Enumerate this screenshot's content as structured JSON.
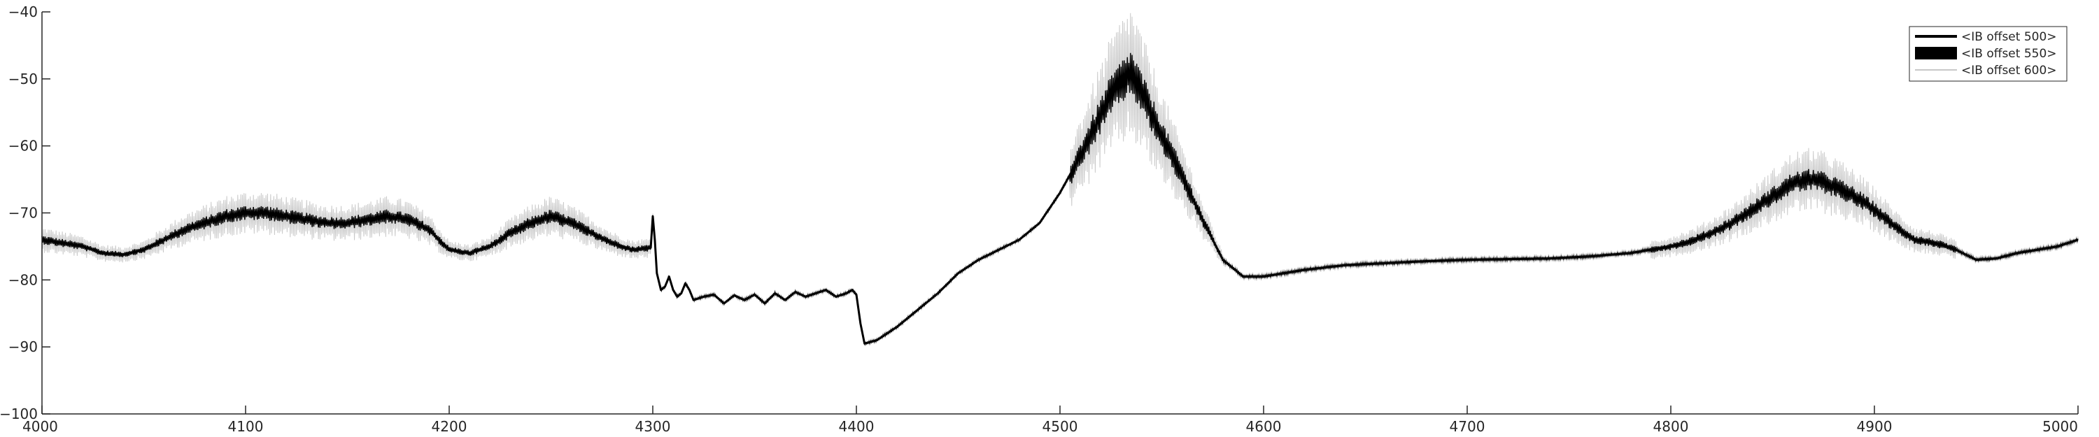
{
  "chart_data": {
    "type": "line",
    "title": "",
    "xlabel": "",
    "ylabel": "",
    "xlim": [
      4000,
      5000
    ],
    "ylim": [
      -100,
      -40
    ],
    "xticks": [
      4000,
      4100,
      4200,
      4300,
      4400,
      4500,
      4600,
      4700,
      4800,
      4900,
      5000
    ],
    "yticks": [
      -100,
      -90,
      -80,
      -70,
      -60,
      -50,
      -40
    ],
    "grid": false,
    "legend_position": "top-right",
    "series": [
      {
        "name": "<IB offset 500>",
        "color": "#000000",
        "style": "thick",
        "x": [
          4000,
          4010,
          4020,
          4030,
          4040,
          4050,
          4060,
          4070,
          4080,
          4090,
          4100,
          4110,
          4120,
          4130,
          4140,
          4150,
          4160,
          4170,
          4180,
          4190,
          4200,
          4210,
          4220,
          4230,
          4240,
          4250,
          4260,
          4270,
          4280,
          4290,
          4299,
          4300,
          4301,
          4302,
          4304,
          4306,
          4308,
          4310,
          4312,
          4314,
          4316,
          4318,
          4320,
          4325,
          4330,
          4335,
          4340,
          4345,
          4350,
          4355,
          4360,
          4365,
          4370,
          4375,
          4380,
          4385,
          4390,
          4395,
          4398,
          4400,
          4402,
          4404,
          4410,
          4420,
          4430,
          4440,
          4450,
          4460,
          4470,
          4480,
          4490,
          4500,
          4510,
          4520,
          4525,
          4530,
          4535,
          4540,
          4550,
          4560,
          4570,
          4580,
          4590,
          4600,
          4620,
          4640,
          4660,
          4680,
          4700,
          4720,
          4740,
          4760,
          4780,
          4800,
          4810,
          4820,
          4830,
          4840,
          4850,
          4860,
          4870,
          4880,
          4890,
          4900,
          4910,
          4920,
          4930,
          4940,
          4950,
          4960,
          4970,
          4980,
          4990,
          5000
        ],
        "y": [
          -74,
          -74.5,
          -75,
          -76,
          -76.2,
          -75.5,
          -74,
          -72.5,
          -71.5,
          -70.5,
          -70,
          -70,
          -70.5,
          -71,
          -71.5,
          -71.5,
          -71,
          -70.5,
          -71,
          -72.5,
          -75.5,
          -76,
          -75,
          -73,
          -71.5,
          -70.5,
          -71.5,
          -73,
          -74.5,
          -75.5,
          -75.2,
          -70.5,
          -74,
          -79,
          -81.5,
          -81,
          -79.5,
          -81.5,
          -82.5,
          -82,
          -80.5,
          -81.5,
          -83,
          -82.5,
          -82.2,
          -83.5,
          -82.3,
          -83,
          -82.2,
          -83.5,
          -82,
          -83,
          -81.8,
          -82.5,
          -82,
          -81.5,
          -82.5,
          -82,
          -81.5,
          -82.2,
          -86.5,
          -89.5,
          -89,
          -87,
          -84.5,
          -82,
          -79,
          -77,
          -75.5,
          -74,
          -71.5,
          -67,
          -61.5,
          -55.5,
          -52.5,
          -50.5,
          -49,
          -52,
          -58.5,
          -64.5,
          -71,
          -77,
          -79.5,
          -79.5,
          -78.5,
          -77.8,
          -77.5,
          -77.2,
          -77,
          -76.9,
          -76.8,
          -76.5,
          -76,
          -75,
          -74.2,
          -73,
          -71.5,
          -69.5,
          -67.5,
          -65.5,
          -65,
          -66,
          -67.5,
          -69.5,
          -72,
          -74,
          -74.5,
          -75.5,
          -77,
          -76.8,
          -76,
          -75.5,
          -75,
          -74
        ]
      },
      {
        "name": "<IB offset 550>",
        "color": "#000000",
        "style": "band-narrow"
      },
      {
        "name": "<IB offset 600>",
        "color": "#c8c8c8",
        "style": "band-wide"
      }
    ]
  }
}
